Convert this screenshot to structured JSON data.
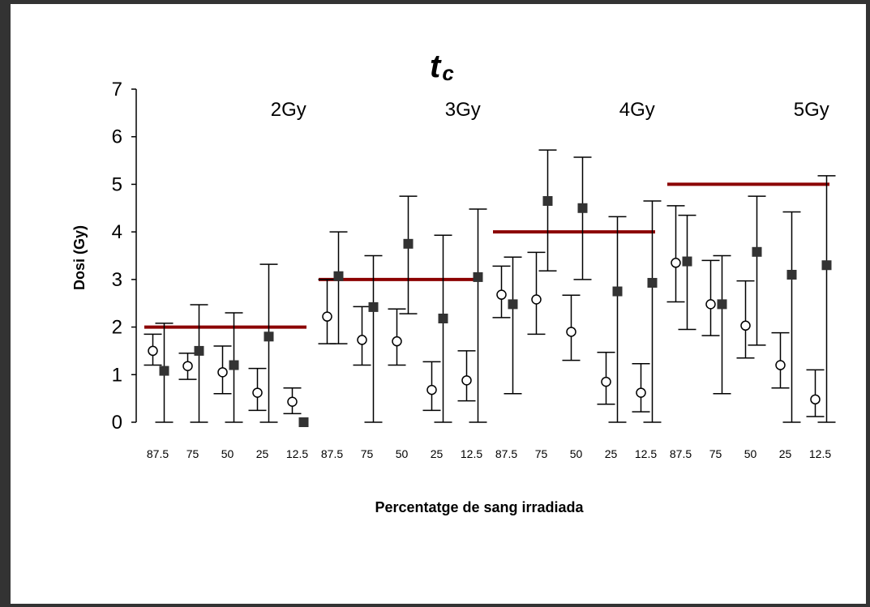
{
  "chart_data": {
    "type": "scatter",
    "title": "t",
    "title_subscript": "c",
    "xlabel": "Percentatge de sang irradiada",
    "ylabel": "Dosi (Gy)",
    "ylim": [
      0,
      7
    ],
    "yticks": [
      "0",
      "1",
      "2",
      "3",
      "4",
      "5",
      "6",
      "7"
    ],
    "grid": false,
    "legend": "none",
    "categories": [
      "87.5",
      "75",
      "50",
      "25",
      "12.5"
    ],
    "groups": [
      {
        "label": "2Gy",
        "reference_dose": 2,
        "open_circles": [
          {
            "y": 1.5,
            "low": 1.2,
            "high": 1.85
          },
          {
            "y": 1.18,
            "low": 0.9,
            "high": 1.45
          },
          {
            "y": 1.05,
            "low": 0.6,
            "high": 1.6
          },
          {
            "y": 0.62,
            "low": 0.25,
            "high": 1.13
          },
          {
            "y": 0.43,
            "low": 0.18,
            "high": 0.72
          }
        ],
        "filled_squares": [
          {
            "y": 1.08,
            "low": 0,
            "high": 2.08
          },
          {
            "y": 1.5,
            "low": 0,
            "high": 2.47
          },
          {
            "y": 1.2,
            "low": 0,
            "high": 2.3
          },
          {
            "y": 1.8,
            "low": 0,
            "high": 3.32
          },
          {
            "y": 0.0,
            "low": 0,
            "high": 0
          }
        ]
      },
      {
        "label": "3Gy",
        "reference_dose": 3,
        "open_circles": [
          {
            "y": 2.22,
            "low": 1.65,
            "high": 3.0
          },
          {
            "y": 1.73,
            "low": 1.2,
            "high": 2.43
          },
          {
            "y": 1.7,
            "low": 1.2,
            "high": 2.38
          },
          {
            "y": 0.68,
            "low": 0.25,
            "high": 1.27
          },
          {
            "y": 0.88,
            "low": 0.45,
            "high": 1.5
          }
        ],
        "filled_squares": [
          {
            "y": 3.07,
            "low": 1.65,
            "high": 4.0
          },
          {
            "y": 2.42,
            "low": 0,
            "high": 3.5
          },
          {
            "y": 3.75,
            "low": 2.28,
            "high": 4.75
          },
          {
            "y": 2.18,
            "low": 0,
            "high": 3.93
          },
          {
            "y": 3.05,
            "low": 0,
            "high": 4.48
          }
        ]
      },
      {
        "label": "4Gy",
        "reference_dose": 4,
        "open_circles": [
          {
            "y": 2.68,
            "low": 2.2,
            "high": 3.28
          },
          {
            "y": 2.58,
            "low": 1.85,
            "high": 3.57
          },
          {
            "y": 1.9,
            "low": 1.3,
            "high": 2.67
          },
          {
            "y": 0.85,
            "low": 0.38,
            "high": 1.47
          },
          {
            "y": 0.62,
            "low": 0.22,
            "high": 1.23
          }
        ],
        "filled_squares": [
          {
            "y": 2.48,
            "low": 0.6,
            "high": 3.47
          },
          {
            "y": 4.65,
            "low": 3.18,
            "high": 5.72
          },
          {
            "y": 4.5,
            "low": 3.0,
            "high": 5.57
          },
          {
            "y": 2.75,
            "low": 0,
            "high": 4.32
          },
          {
            "y": 2.93,
            "low": 0,
            "high": 4.65
          }
        ]
      },
      {
        "label": "5Gy",
        "reference_dose": 5,
        "open_circles": [
          {
            "y": 3.35,
            "low": 2.53,
            "high": 4.55
          },
          {
            "y": 2.48,
            "low": 1.82,
            "high": 3.4
          },
          {
            "y": 2.03,
            "low": 1.35,
            "high": 2.97
          },
          {
            "y": 1.2,
            "low": 0.72,
            "high": 1.88
          },
          {
            "y": 0.48,
            "low": 0.12,
            "high": 1.1
          }
        ],
        "filled_squares": [
          {
            "y": 3.38,
            "low": 1.95,
            "high": 4.35
          },
          {
            "y": 2.48,
            "low": 0.6,
            "high": 3.5
          },
          {
            "y": 3.58,
            "low": 1.62,
            "high": 4.75
          },
          {
            "y": 3.1,
            "low": 0,
            "high": 4.42
          },
          {
            "y": 3.3,
            "low": 0,
            "high": 5.18
          }
        ]
      }
    ],
    "colors": {
      "reference_line": "#8b0000",
      "marker_fill": "#333333",
      "circle_fill": "#ffffff",
      "stroke": "#000000"
    }
  }
}
